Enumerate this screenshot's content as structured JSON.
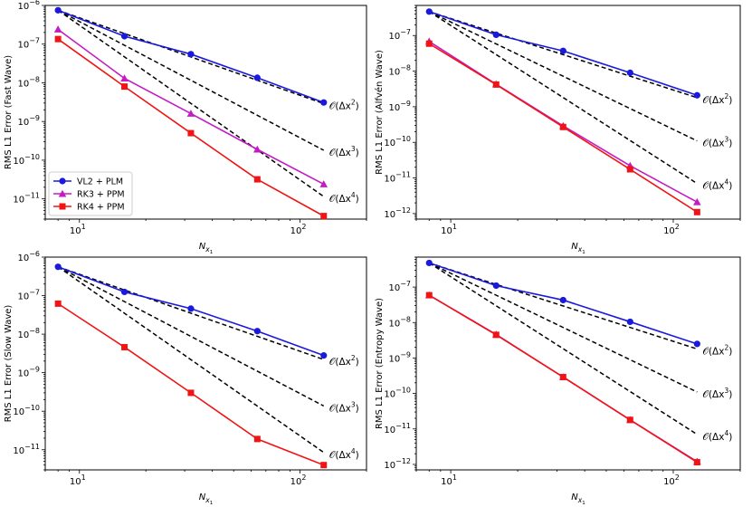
{
  "colors": {
    "vl2_plm": "#1a1adf",
    "rk3_ppm": "#c41bc4",
    "rk4_ppm": "#f01414",
    "reference": "#000000"
  },
  "legend": {
    "placement": "lower-left",
    "panel": 0,
    "entries": [
      "VL2 + PLM",
      "RK3 + PPM",
      "RK4 + PPM"
    ]
  },
  "chart_data": [
    {
      "type": "line",
      "panel": "top-left",
      "xlabel": "N_x1",
      "ylabel": "RMS L1 Error (Fast Wave)",
      "xscale": "log",
      "yscale": "log",
      "xlim": [
        7,
        200
      ],
      "ylim": [
        3e-12,
        1e-06
      ],
      "xticks": [
        10,
        100
      ],
      "xtick_labels": [
        "10^1",
        "10^2"
      ],
      "yticks": [
        1e-11,
        1e-10,
        1e-09,
        1e-08,
        1e-07,
        1e-06
      ],
      "ytick_labels": [
        "10^-11",
        "10^-10",
        "10^-9",
        "10^-8",
        "10^-7",
        "10^-6"
      ],
      "x": [
        8,
        16,
        32,
        64,
        128
      ],
      "series": [
        {
          "name": "VL2 + PLM",
          "marker": "circle",
          "values": [
            7.5e-07,
            1.6e-07,
            5.5e-08,
            1.35e-08,
            3.1e-09
          ]
        },
        {
          "name": "RK3 + PPM",
          "marker": "triangle",
          "values": [
            2.4e-07,
            1.3e-08,
            1.6e-09,
            1.9e-10,
            2.4e-11
          ]
        },
        {
          "name": "RK4 + PPM",
          "marker": "square",
          "values": [
            1.35e-07,
            8e-09,
            5e-10,
            3.2e-11,
            3.6e-12
          ]
        }
      ],
      "reference_lines": [
        {
          "label": "𝒪(Δx²)",
          "order": 2,
          "start": [
            8,
            7.5e-07
          ],
          "end": [
            128,
            2.9e-09
          ]
        },
        {
          "label": "𝒪(Δx³)",
          "order": 3,
          "start": [
            8,
            7.5e-07
          ],
          "end": [
            128,
            1.8e-10
          ]
        },
        {
          "label": "𝒪(Δx⁴)",
          "order": 4,
          "start": [
            8,
            7.5e-07
          ],
          "end": [
            128,
            1.15e-11
          ]
        }
      ]
    },
    {
      "type": "line",
      "panel": "top-right",
      "xlabel": "N_x1",
      "ylabel": "RMS L1 Error (Alfvén Wave)",
      "xscale": "log",
      "yscale": "log",
      "xlim": [
        7,
        200
      ],
      "ylim": [
        7e-13,
        7e-07
      ],
      "xticks": [
        10,
        100
      ],
      "xtick_labels": [
        "10^1",
        "10^2"
      ],
      "yticks": [
        1e-12,
        1e-11,
        1e-10,
        1e-09,
        1e-08,
        1e-07
      ],
      "ytick_labels": [
        "10^-12",
        "10^-11",
        "10^-10",
        "10^-9",
        "10^-8",
        "10^-7"
      ],
      "x": [
        8,
        16,
        32,
        64,
        128
      ],
      "series": [
        {
          "name": "VL2 + PLM",
          "marker": "circle",
          "values": [
            4.7e-07,
            1.05e-07,
            3.7e-08,
            9e-09,
            2.1e-09
          ]
        },
        {
          "name": "RK3 + PPM",
          "marker": "triangle",
          "values": [
            6.8e-08,
            4.3e-09,
            2.9e-10,
            2.2e-11,
            2.1e-12
          ]
        },
        {
          "name": "RK4 + PPM",
          "marker": "square",
          "values": [
            5.9e-08,
            4.2e-09,
            2.7e-10,
            1.75e-11,
            1.1e-12
          ]
        }
      ],
      "reference_lines": [
        {
          "label": "𝒪(Δx²)",
          "order": 2,
          "start": [
            8,
            4.7e-07
          ],
          "end": [
            128,
            1.8e-09
          ]
        },
        {
          "label": "𝒪(Δx³)",
          "order": 3,
          "start": [
            8,
            4.7e-07
          ],
          "end": [
            128,
            1.1e-10
          ]
        },
        {
          "label": "𝒪(Δx⁴)",
          "order": 4,
          "start": [
            8,
            4.7e-07
          ],
          "end": [
            128,
            7e-12
          ]
        }
      ]
    },
    {
      "type": "line",
      "panel": "bottom-left",
      "xlabel": "N_x1",
      "ylabel": "RMS L1 Error (Slow Wave)",
      "xscale": "log",
      "yscale": "log",
      "xlim": [
        7,
        200
      ],
      "ylim": [
        3e-12,
        1e-06
      ],
      "xticks": [
        10,
        100
      ],
      "xtick_labels": [
        "10^1",
        "10^2"
      ],
      "yticks": [
        1e-11,
        1e-10,
        1e-09,
        1e-08,
        1e-07,
        1e-06
      ],
      "ytick_labels": [
        "10^-11",
        "10^-10",
        "10^-9",
        "10^-8",
        "10^-7",
        "10^-6"
      ],
      "x": [
        8,
        16,
        32,
        64,
        128
      ],
      "series": [
        {
          "name": "VL2 + PLM",
          "marker": "circle",
          "values": [
            5.6e-07,
            1.25e-07,
            4.6e-08,
            1.2e-08,
            2.8e-09
          ]
        },
        {
          "name": "RK4 + PPM",
          "marker": "square",
          "values": [
            6.2e-08,
            4.6e-09,
            3e-10,
            1.9e-11,
            4e-12
          ]
        }
      ],
      "reference_lines": [
        {
          "label": "𝒪(Δx²)",
          "order": 2,
          "start": [
            8,
            5.6e-07
          ],
          "end": [
            128,
            2.2e-09
          ]
        },
        {
          "label": "𝒪(Δx³)",
          "order": 3,
          "start": [
            8,
            5.6e-07
          ],
          "end": [
            128,
            1.37e-10
          ]
        },
        {
          "label": "𝒪(Δx⁴)",
          "order": 4,
          "start": [
            8,
            5.6e-07
          ],
          "end": [
            128,
            8.5e-12
          ]
        }
      ]
    },
    {
      "type": "line",
      "panel": "bottom-right",
      "xlabel": "N_x1",
      "ylabel": "RMS L1 Error (Entropy Wave)",
      "xscale": "log",
      "yscale": "log",
      "xlim": [
        7,
        200
      ],
      "ylim": [
        7e-13,
        7e-07
      ],
      "xticks": [
        10,
        100
      ],
      "xtick_labels": [
        "10^1",
        "10^2"
      ],
      "yticks": [
        1e-12,
        1e-11,
        1e-10,
        1e-09,
        1e-08,
        1e-07
      ],
      "ytick_labels": [
        "10^-12",
        "10^-11",
        "10^-10",
        "10^-9",
        "10^-8",
        "10^-7"
      ],
      "x": [
        8,
        16,
        32,
        64,
        128
      ],
      "series": [
        {
          "name": "VL2 + PLM",
          "marker": "circle",
          "values": [
            4.8e-07,
            1.1e-07,
            4.3e-08,
            1.05e-08,
            2.5e-09
          ]
        },
        {
          "name": "RK3 + PPM",
          "marker": "triangle",
          "values": [
            5.9e-08,
            4.6e-09,
            2.9e-10,
            1.8e-11,
            1.2e-12
          ]
        },
        {
          "name": "RK4 + PPM",
          "marker": "square",
          "values": [
            5.9e-08,
            4.5e-09,
            2.9e-10,
            1.8e-11,
            1.15e-12
          ]
        }
      ],
      "reference_lines": [
        {
          "label": "𝒪(Δx²)",
          "order": 2,
          "start": [
            8,
            4.8e-07
          ],
          "end": [
            128,
            1.8e-09
          ]
        },
        {
          "label": "𝒪(Δx³)",
          "order": 3,
          "start": [
            8,
            4.8e-07
          ],
          "end": [
            128,
            1.1e-10
          ]
        },
        {
          "label": "𝒪(Δx⁴)",
          "order": 4,
          "start": [
            8,
            4.8e-07
          ],
          "end": [
            128,
            7e-12
          ]
        }
      ]
    }
  ]
}
